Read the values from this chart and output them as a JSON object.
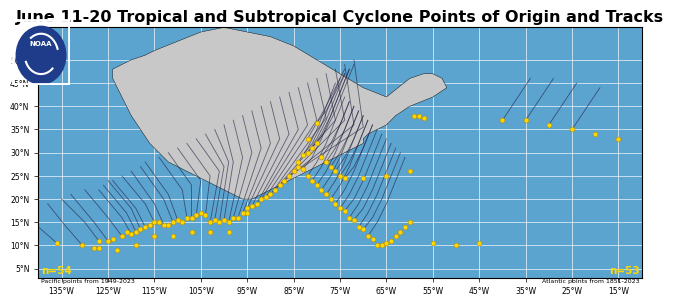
{
  "title": "June 11-20 Tropical and Subtropical Cyclone Points of Origin and Tracks",
  "title_fontsize": 11.5,
  "lon_min": -140,
  "lon_max": -10,
  "lat_min": 3,
  "lat_max": 57,
  "ocean_color": "#5ba4cf",
  "land_color": "#c8c8c8",
  "grid_color": "#ffffff",
  "point_color": "#FFD700",
  "point_size": 3.5,
  "track_color": "#222244",
  "track_alpha": 0.65,
  "track_lw": 0.6,
  "n_pacific": 54,
  "n_atlantic": 53,
  "pacific_label": "Pacific points from 1949-2023",
  "atlantic_label": "Atlantic points from 1851-2023",
  "label_color": "#FFD700",
  "xticks": [
    -135,
    -125,
    -115,
    -105,
    -95,
    -85,
    -75,
    -65,
    -55,
    -45,
    -35,
    -25,
    -15
  ],
  "yticks": [
    5,
    10,
    15,
    20,
    25,
    30,
    35,
    40,
    45,
    50
  ],
  "xtick_labels": [
    "135°W",
    "125°W",
    "115°W",
    "105°W",
    "95°W",
    "85°W",
    "75°W",
    "65°W",
    "55°W",
    "45°W",
    "35°W",
    "25°W",
    "15°W"
  ],
  "ytick_labels": [
    "5°N",
    "10°N",
    "15°N",
    "20°N",
    "25°N",
    "30°N",
    "35°N",
    "40°N",
    "45°N",
    "50°N"
  ],
  "pacific_genesis_points": [
    [
      -136,
      10.5
    ],
    [
      -130.5,
      10
    ],
    [
      -128,
      9.5
    ],
    [
      -127,
      11
    ],
    [
      -125,
      11
    ],
    [
      -124,
      11.5
    ],
    [
      -122,
      12
    ],
    [
      -121,
      13
    ],
    [
      -120,
      12.5
    ],
    [
      -119,
      13
    ],
    [
      -118,
      13.5
    ],
    [
      -117,
      14
    ],
    [
      -116,
      14.5
    ],
    [
      -115,
      15
    ],
    [
      -114,
      15
    ],
    [
      -113,
      14.5
    ],
    [
      -112,
      14.5
    ],
    [
      -111,
      15
    ],
    [
      -110,
      15.5
    ],
    [
      -109,
      15
    ],
    [
      -108,
      16
    ],
    [
      -107,
      16
    ],
    [
      -106,
      16.5
    ],
    [
      -105,
      17
    ],
    [
      -104,
      16.5
    ],
    [
      -103,
      15
    ],
    [
      -102,
      15.5
    ],
    [
      -101,
      15
    ],
    [
      -100,
      15.5
    ],
    [
      -99,
      15
    ],
    [
      -98,
      16
    ],
    [
      -97,
      16
    ],
    [
      -96,
      17
    ],
    [
      -95,
      18
    ],
    [
      -94,
      18.5
    ],
    [
      -93,
      19
    ],
    [
      -92,
      20
    ],
    [
      -91,
      20.5
    ],
    [
      -90,
      21
    ],
    [
      -89,
      22
    ],
    [
      -88,
      23
    ],
    [
      -87,
      24
    ],
    [
      -86,
      25
    ],
    [
      -85,
      26
    ],
    [
      -84,
      27
    ],
    [
      -127,
      9.5
    ],
    [
      -123,
      9
    ],
    [
      -119,
      10
    ],
    [
      -115,
      12
    ],
    [
      -111,
      12
    ],
    [
      -107,
      13
    ],
    [
      -103,
      13
    ],
    [
      -99,
      13
    ],
    [
      -95,
      17
    ]
  ],
  "atlantic_genesis_points": [
    [
      -83,
      26.5
    ],
    [
      -82,
      25
    ],
    [
      -81,
      24
    ],
    [
      -80,
      23
    ],
    [
      -79,
      22
    ],
    [
      -78,
      21
    ],
    [
      -77,
      20
    ],
    [
      -76,
      19
    ],
    [
      -75,
      18
    ],
    [
      -74,
      17.5
    ],
    [
      -73,
      16
    ],
    [
      -72,
      15.5
    ],
    [
      -71,
      14
    ],
    [
      -70,
      13.5
    ],
    [
      -69,
      12
    ],
    [
      -68,
      11.5
    ],
    [
      -67,
      10
    ],
    [
      -66,
      10
    ],
    [
      -65,
      10.5
    ],
    [
      -64,
      11
    ],
    [
      -63,
      12
    ],
    [
      -62,
      13
    ],
    [
      -61,
      14
    ],
    [
      -60,
      15
    ],
    [
      -59,
      38
    ],
    [
      -58,
      38
    ],
    [
      -57,
      37.5
    ],
    [
      -84,
      28
    ],
    [
      -83,
      29.5
    ],
    [
      -82,
      30
    ],
    [
      -81,
      31
    ],
    [
      -80,
      32
    ],
    [
      -79,
      29
    ],
    [
      -78,
      28
    ],
    [
      -77,
      27
    ],
    [
      -76,
      26
    ],
    [
      -75,
      25
    ],
    [
      -74,
      24.5
    ],
    [
      -70,
      24.5
    ],
    [
      -65,
      25
    ],
    [
      -60,
      26
    ],
    [
      -55,
      10.5
    ],
    [
      -50,
      10
    ],
    [
      -45,
      10.5
    ],
    [
      -40,
      37
    ],
    [
      -35,
      37
    ],
    [
      -30,
      36
    ],
    [
      -25,
      35
    ],
    [
      -20,
      34
    ],
    [
      -15,
      33
    ],
    [
      -82,
      33
    ],
    [
      -80,
      36.5
    ]
  ],
  "pacific_tracks": [
    [
      [
        -136,
        10.5
      ],
      [
        -140,
        14
      ]
    ],
    [
      [
        -130.5,
        10
      ],
      [
        -134,
        14
      ],
      [
        -138,
        19
      ]
    ],
    [
      [
        -127,
        11
      ],
      [
        -130,
        15
      ],
      [
        -135,
        20
      ]
    ],
    [
      [
        -125,
        11
      ],
      [
        -128,
        15
      ],
      [
        -133,
        21
      ]
    ],
    [
      [
        -122,
        12
      ],
      [
        -125,
        16
      ],
      [
        -130,
        22
      ]
    ],
    [
      [
        -120,
        12.5
      ],
      [
        -122,
        16
      ],
      [
        -127,
        22
      ]
    ],
    [
      [
        -119,
        13
      ],
      [
        -121,
        17
      ],
      [
        -126,
        23
      ]
    ],
    [
      [
        -118,
        13.5
      ],
      [
        -120,
        18
      ],
      [
        -125,
        24
      ]
    ],
    [
      [
        -117,
        14
      ],
      [
        -119,
        18
      ],
      [
        -124,
        24
      ]
    ],
    [
      [
        -115,
        15
      ],
      [
        -117,
        19
      ],
      [
        -122,
        25
      ]
    ],
    [
      [
        -113,
        14.5
      ],
      [
        -115,
        19
      ],
      [
        -120,
        26
      ]
    ],
    [
      [
        -111,
        15
      ],
      [
        -113,
        20
      ],
      [
        -118,
        27
      ]
    ],
    [
      [
        -110,
        15.5
      ],
      [
        -112,
        21
      ],
      [
        -117,
        28
      ]
    ],
    [
      [
        -108,
        16
      ],
      [
        -109,
        22
      ],
      [
        -114,
        29
      ]
    ],
    [
      [
        -107,
        16
      ],
      [
        -107,
        23
      ],
      [
        -112,
        30
      ]
    ],
    [
      [
        -106,
        16.5
      ],
      [
        -105,
        24
      ],
      [
        -110,
        31
      ]
    ],
    [
      [
        -104,
        16.5
      ],
      [
        -103,
        25
      ],
      [
        -108,
        32
      ]
    ],
    [
      [
        -103,
        15
      ],
      [
        -101,
        26
      ],
      [
        -106,
        33
      ]
    ],
    [
      [
        -102,
        15.5
      ],
      [
        -100,
        27
      ],
      [
        -104,
        34
      ]
    ],
    [
      [
        -101,
        15
      ],
      [
        -99,
        28
      ],
      [
        -102,
        35
      ]
    ],
    [
      [
        -100,
        15.5
      ],
      [
        -98,
        28
      ],
      [
        -100,
        36
      ]
    ],
    [
      [
        -99,
        15
      ],
      [
        -96,
        29
      ],
      [
        -98,
        37
      ]
    ],
    [
      [
        -98,
        16
      ],
      [
        -94,
        30
      ],
      [
        -96,
        38
      ]
    ],
    [
      [
        -97,
        16
      ],
      [
        -92,
        31
      ],
      [
        -94,
        39
      ]
    ],
    [
      [
        -96,
        17
      ],
      [
        -90,
        32
      ],
      [
        -92,
        40
      ]
    ],
    [
      [
        -95,
        18
      ],
      [
        -88,
        33
      ],
      [
        -90,
        41
      ]
    ],
    [
      [
        -94,
        18.5
      ],
      [
        -86,
        34
      ],
      [
        -88,
        42
      ]
    ],
    [
      [
        -93,
        19
      ],
      [
        -84,
        35
      ],
      [
        -86,
        43
      ]
    ],
    [
      [
        -92,
        20
      ],
      [
        -82,
        36
      ],
      [
        -84,
        44
      ]
    ],
    [
      [
        -91,
        20.5
      ],
      [
        -80,
        37
      ],
      [
        -82,
        45
      ]
    ],
    [
      [
        -90,
        21
      ],
      [
        -78,
        37.5
      ],
      [
        -80,
        46
      ]
    ],
    [
      [
        -89,
        22
      ],
      [
        -76,
        37
      ],
      [
        -78,
        47
      ]
    ],
    [
      [
        -88,
        23
      ],
      [
        -74,
        37
      ],
      [
        -76,
        48
      ]
    ],
    [
      [
        -87,
        24
      ],
      [
        -72,
        36
      ],
      [
        -74,
        49
      ]
    ],
    [
      [
        -86,
        25
      ],
      [
        -70,
        35.5
      ],
      [
        -72,
        50
      ]
    ]
  ],
  "atlantic_tracks": [
    [
      [
        -83,
        26.5
      ],
      [
        -81,
        29
      ],
      [
        -79,
        33
      ],
      [
        -77,
        38
      ],
      [
        -75,
        43
      ],
      [
        -73,
        48
      ]
    ],
    [
      [
        -82,
        25
      ],
      [
        -80,
        28
      ],
      [
        -78,
        32
      ],
      [
        -76,
        37
      ],
      [
        -74,
        42
      ]
    ],
    [
      [
        -81,
        24
      ],
      [
        -79,
        27
      ],
      [
        -77,
        31
      ],
      [
        -75,
        36
      ],
      [
        -73,
        41
      ]
    ],
    [
      [
        -80,
        23
      ],
      [
        -78,
        26
      ],
      [
        -76,
        30
      ],
      [
        -74,
        35
      ],
      [
        -72,
        40
      ]
    ],
    [
      [
        -79,
        22
      ],
      [
        -77,
        25
      ],
      [
        -75,
        29
      ],
      [
        -73,
        34
      ],
      [
        -71,
        39
      ]
    ],
    [
      [
        -78,
        21
      ],
      [
        -76,
        24
      ],
      [
        -74,
        28
      ],
      [
        -72,
        33
      ],
      [
        -70,
        38
      ]
    ],
    [
      [
        -77,
        20
      ],
      [
        -75,
        23
      ],
      [
        -73,
        27
      ],
      [
        -71,
        32
      ],
      [
        -69,
        37
      ]
    ],
    [
      [
        -76,
        19
      ],
      [
        -74,
        22
      ],
      [
        -72,
        26
      ],
      [
        -70,
        31
      ],
      [
        -68,
        36
      ]
    ],
    [
      [
        -75,
        18
      ],
      [
        -73,
        21
      ],
      [
        -71,
        25
      ],
      [
        -69,
        30
      ],
      [
        -67,
        35
      ]
    ],
    [
      [
        -74,
        17.5
      ],
      [
        -72,
        20
      ],
      [
        -70,
        24
      ],
      [
        -68,
        29
      ],
      [
        -66,
        34
      ]
    ],
    [
      [
        -73,
        16
      ],
      [
        -71,
        19
      ],
      [
        -69,
        23
      ],
      [
        -67,
        28
      ],
      [
        -65,
        33
      ]
    ],
    [
      [
        -72,
        15.5
      ],
      [
        -70,
        18
      ],
      [
        -68,
        22
      ],
      [
        -66,
        27
      ],
      [
        -64,
        32
      ]
    ],
    [
      [
        -71,
        14
      ],
      [
        -69,
        17
      ],
      [
        -67,
        21
      ],
      [
        -65,
        26
      ],
      [
        -63,
        31
      ]
    ],
    [
      [
        -70,
        13.5
      ],
      [
        -68,
        16
      ],
      [
        -66,
        20
      ],
      [
        -64,
        25
      ],
      [
        -62,
        30
      ]
    ],
    [
      [
        -69,
        12
      ],
      [
        -67,
        15
      ],
      [
        -65,
        19
      ],
      [
        -63,
        24
      ],
      [
        -61,
        29
      ]
    ],
    [
      [
        -84,
        28
      ],
      [
        -82,
        31
      ],
      [
        -80,
        35
      ],
      [
        -78,
        40
      ],
      [
        -76,
        45
      ]
    ],
    [
      [
        -83,
        29.5
      ],
      [
        -81,
        32
      ],
      [
        -79,
        36
      ],
      [
        -77,
        41
      ],
      [
        -75,
        46
      ]
    ],
    [
      [
        -82,
        30
      ],
      [
        -80,
        33
      ],
      [
        -78,
        37
      ],
      [
        -76,
        42
      ],
      [
        -74,
        47
      ]
    ],
    [
      [
        -81,
        31
      ],
      [
        -79,
        34
      ],
      [
        -77,
        38
      ],
      [
        -75,
        43
      ],
      [
        -73,
        48
      ]
    ],
    [
      [
        -80,
        32
      ],
      [
        -78,
        35
      ],
      [
        -76,
        39
      ],
      [
        -74,
        44
      ],
      [
        -72,
        49
      ]
    ],
    [
      [
        -79,
        29
      ],
      [
        -77,
        32
      ],
      [
        -75,
        36
      ],
      [
        -73,
        41
      ]
    ],
    [
      [
        -78,
        28
      ],
      [
        -76,
        31
      ],
      [
        -74,
        35
      ],
      [
        -72,
        40
      ]
    ],
    [
      [
        -77,
        27
      ],
      [
        -75,
        30
      ],
      [
        -73,
        34
      ],
      [
        -71,
        39
      ]
    ],
    [
      [
        -76,
        26
      ],
      [
        -74,
        29
      ],
      [
        -72,
        33
      ],
      [
        -70,
        38
      ]
    ],
    [
      [
        -75,
        25
      ],
      [
        -73,
        28
      ],
      [
        -71,
        32
      ],
      [
        -69,
        37
      ]
    ],
    [
      [
        -74,
        24.5
      ],
      [
        -72,
        27
      ],
      [
        -70,
        31
      ],
      [
        -68,
        36
      ]
    ],
    [
      [
        -40,
        37
      ],
      [
        -38,
        40
      ],
      [
        -36,
        43
      ],
      [
        -34,
        46
      ]
    ],
    [
      [
        -35,
        37
      ],
      [
        -33,
        40
      ],
      [
        -31,
        43
      ],
      [
        -29,
        46
      ]
    ],
    [
      [
        -30,
        36
      ],
      [
        -28,
        39
      ],
      [
        -26,
        42
      ],
      [
        -24,
        45
      ]
    ],
    [
      [
        -25,
        35
      ],
      [
        -23,
        38
      ],
      [
        -21,
        41
      ],
      [
        -19,
        44
      ]
    ],
    [
      [
        -82,
        33
      ],
      [
        -80,
        36.5
      ],
      [
        -78,
        40
      ],
      [
        -76,
        44
      ],
      [
        -74,
        48
      ]
    ],
    [
      [
        -80,
        36.5
      ],
      [
        -78,
        39
      ],
      [
        -76,
        43
      ],
      [
        -74,
        47
      ]
    ]
  ]
}
